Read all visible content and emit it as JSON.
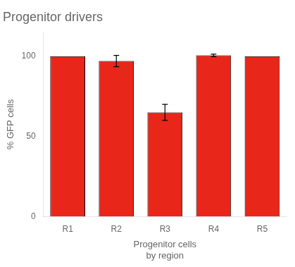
{
  "chart_data": {
    "type": "bar",
    "title": "Progenitor drivers",
    "xlabel": "Progenitor cells\nby region",
    "ylabel": "% GFP cells",
    "categories": [
      "R1",
      "R2",
      "R3",
      "R4",
      "R5"
    ],
    "values": [
      100.0,
      97.0,
      65.0,
      100.5,
      100.0
    ],
    "errors": [
      0.0,
      3.5,
      5.0,
      0.8,
      0.0
    ],
    "color": "#E8261A",
    "ylim": [
      0,
      115
    ],
    "yticks": [
      0,
      50,
      100
    ],
    "grid": false
  }
}
